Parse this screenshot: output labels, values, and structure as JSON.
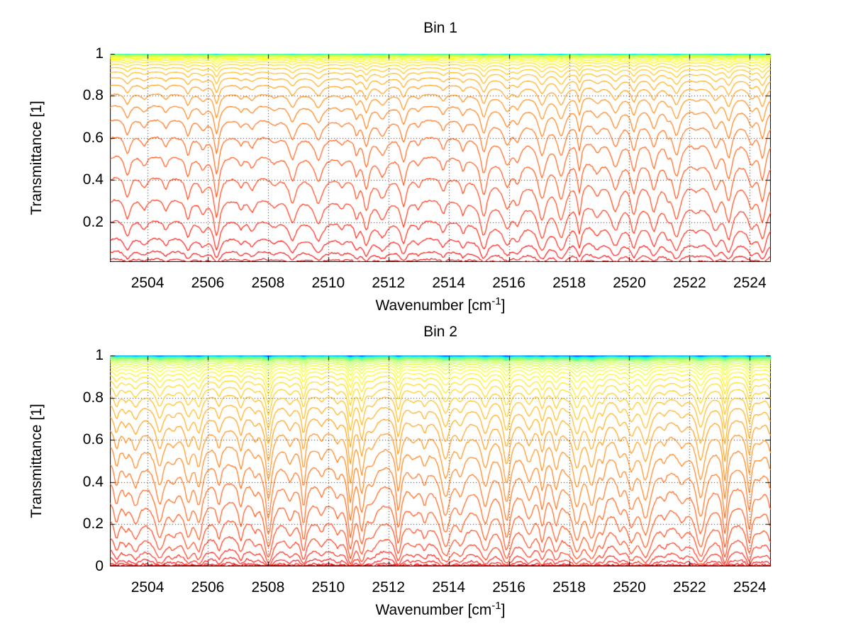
{
  "figure": {
    "background": "#ffffff",
    "text_color": "#000000",
    "grid_style": "dotted",
    "axis_color": "#000000"
  },
  "chart_data": [
    {
      "id": "bin1",
      "type": "line",
      "title": "Bin 1",
      "xlabel": "Wavenumber [cm^-1]",
      "xlabel_pre": "Wavenumber [cm",
      "xlabel_sup": "-1",
      "xlabel_post": "]",
      "ylabel": "Transmittance [1]",
      "xlim": [
        2502.75,
        2524.7
      ],
      "ylim": [
        0.01,
        1
      ],
      "xticks": [
        2504,
        2506,
        2508,
        2510,
        2512,
        2514,
        2516,
        2518,
        2520,
        2522,
        2524
      ],
      "xtick_labels": [
        "2504",
        "2506",
        "2508",
        "2510",
        "2512",
        "2514",
        "2516",
        "2518",
        "2520",
        "2522",
        "2524"
      ],
      "yticks": [
        1,
        0.8,
        0.6,
        0.4,
        0.2
      ],
      "ytick_labels": [
        "1",
        "0.8",
        "0.6",
        "0.4",
        "0.2"
      ],
      "grid": "dotted",
      "legend": "none",
      "colormap": "jet",
      "observed_continuum_levels": [
        1.0,
        0.998,
        0.99,
        0.97,
        0.94,
        0.9,
        0.84,
        0.74,
        0.6,
        0.47,
        0.35,
        0.23,
        0.15,
        0.09,
        0.06,
        0.04,
        0.03,
        0.02,
        0.01
      ],
      "series_model": {
        "n_curves": 64,
        "seed": 7,
        "amount_start": 0.0004,
        "break_fraction": 0.55,
        "amount_break": 0.006,
        "amount_end": 20,
        "baseline_tilt": 0.06,
        "dip_scale": 0.5,
        "dip_mean_spacing_cm": 0.55,
        "dip_width_cm": 0.1,
        "noise": 0.004,
        "n_points": 460
      }
    },
    {
      "id": "bin2",
      "type": "line",
      "title": "Bin 2",
      "xlabel": "Wavenumber [cm^-1]",
      "xlabel_pre": "Wavenumber [cm",
      "xlabel_sup": "-1",
      "xlabel_post": "]",
      "ylabel": "Transmittance [1]",
      "xlim": [
        2502.75,
        2524.7
      ],
      "ylim": [
        0,
        1
      ],
      "xticks": [
        2504,
        2506,
        2508,
        2510,
        2512,
        2514,
        2516,
        2518,
        2520,
        2522,
        2524
      ],
      "xtick_labels": [
        "2504",
        "2506",
        "2508",
        "2510",
        "2512",
        "2514",
        "2516",
        "2518",
        "2520",
        "2522",
        "2524"
      ],
      "yticks": [
        1,
        0.8,
        0.6,
        0.4,
        0.2,
        0
      ],
      "ytick_labels": [
        "1",
        "0.8",
        "0.6",
        "0.4",
        "0.2",
        "0"
      ],
      "grid": "dotted",
      "legend": "none",
      "colormap": "jet",
      "observed_continuum_levels": [
        1.0,
        0.99,
        0.97,
        0.92,
        0.89,
        0.87,
        0.85,
        0.82,
        0.77,
        0.69,
        0.55,
        0.4,
        0.24,
        0.14,
        0.09,
        0.07,
        0.04,
        0.02,
        0.005
      ],
      "series_model": {
        "n_curves": 64,
        "seed": 13,
        "amount_start": 0.0006,
        "break_fraction": 0.52,
        "amount_break": 0.012,
        "amount_end": 22,
        "baseline_tilt": 0.05,
        "dip_scale": 0.85,
        "dip_mean_spacing_cm": 0.55,
        "dip_width_cm": 0.11,
        "noise": 0.005,
        "n_points": 460
      }
    }
  ]
}
